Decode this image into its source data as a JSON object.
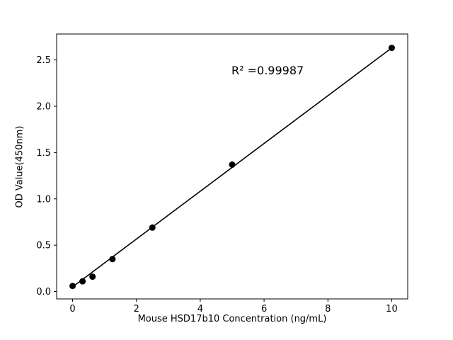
{
  "chart_data": {
    "type": "scatter",
    "title": "",
    "xlabel": "Mouse HSD17b10 Concentration (ng/mL)",
    "ylabel": "OD Value(450nm)",
    "annotation": "R² =0.99987",
    "points": [
      {
        "x": 0,
        "y": 0.06
      },
      {
        "x": 0.3125,
        "y": 0.11
      },
      {
        "x": 0.625,
        "y": 0.16
      },
      {
        "x": 1.25,
        "y": 0.35
      },
      {
        "x": 2.5,
        "y": 0.69
      },
      {
        "x": 5,
        "y": 1.37
      },
      {
        "x": 10,
        "y": 2.63
      }
    ],
    "fit_line": {
      "x1": 0,
      "y1": 0.05,
      "x2": 10,
      "y2": 2.63
    },
    "xlim": [
      -0.5,
      10.5
    ],
    "ylim": [
      -0.08,
      2.78
    ],
    "x_tick_values": [
      0,
      2,
      4,
      6,
      8,
      10
    ],
    "x_tick_labels": [
      "0",
      "2",
      "4",
      "6",
      "8",
      "10"
    ],
    "y_tick_values": [
      0.0,
      0.5,
      1.0,
      1.5,
      2.0,
      2.5
    ],
    "y_tick_labels": [
      "0.0",
      "0.5",
      "1.0",
      "1.5",
      "2.0",
      "2.5"
    ],
    "grid": false,
    "legend": "none",
    "marker_color": "#000000",
    "line_color": "#000000",
    "frame_color": "#000000"
  }
}
